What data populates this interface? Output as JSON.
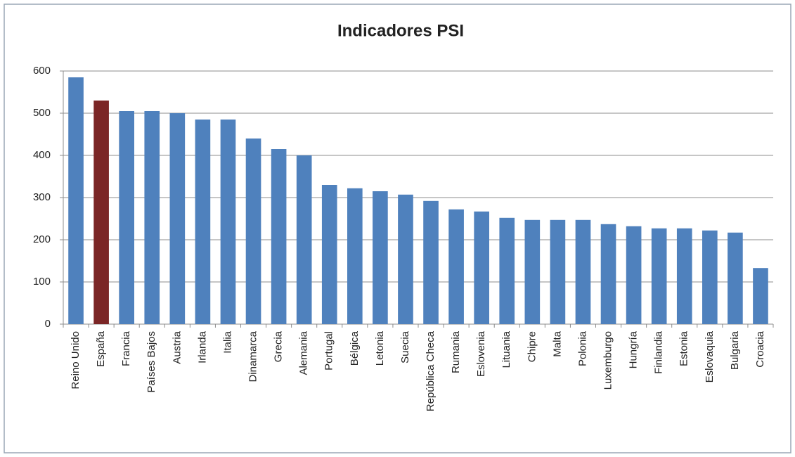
{
  "chart_data": {
    "type": "bar",
    "title": "Indicadores PSI",
    "categories": [
      "Reino Unido",
      "España",
      "Francia",
      "Países Bajos",
      "Austria",
      "Irlanda",
      "Italia",
      "Dinamarca",
      "Grecia",
      "Alemania",
      "Portugal",
      "Bélgica",
      "Letonia",
      "Suecia",
      "República Checa",
      "Rumania",
      "Eslovenia",
      "Lituania",
      "Chipre",
      "Malta",
      "Polonia",
      "Luxemburgo",
      "Hungría",
      "Finlandia",
      "Estonia",
      "Eslovaquia",
      "Bulgaria",
      "Croacia"
    ],
    "values": [
      585,
      530,
      505,
      505,
      500,
      485,
      485,
      440,
      415,
      400,
      330,
      322,
      315,
      307,
      292,
      272,
      267,
      252,
      247,
      247,
      247,
      237,
      232,
      227,
      227,
      222,
      217,
      133
    ],
    "colors": [
      "#4f81bd",
      "#7b2626",
      "#4f81bd",
      "#4f81bd",
      "#4f81bd",
      "#4f81bd",
      "#4f81bd",
      "#4f81bd",
      "#4f81bd",
      "#4f81bd",
      "#4f81bd",
      "#4f81bd",
      "#4f81bd",
      "#4f81bd",
      "#4f81bd",
      "#4f81bd",
      "#4f81bd",
      "#4f81bd",
      "#4f81bd",
      "#4f81bd",
      "#4f81bd",
      "#4f81bd",
      "#4f81bd",
      "#4f81bd",
      "#4f81bd",
      "#4f81bd",
      "#4f81bd",
      "#4f81bd"
    ],
    "ylim": [
      0,
      600
    ],
    "yticks": [
      0,
      100,
      200,
      300,
      400,
      500,
      600
    ],
    "grid": true
  }
}
